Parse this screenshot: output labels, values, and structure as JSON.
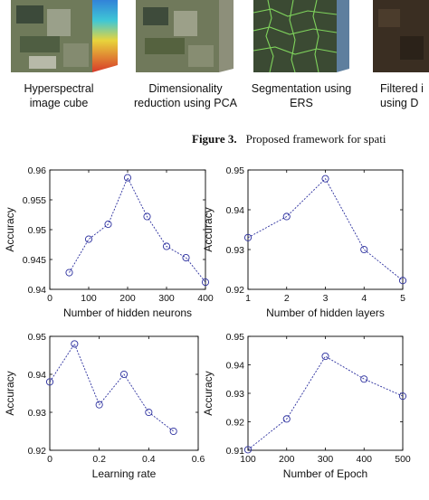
{
  "pipeline": {
    "steps": [
      {
        "label": "Hyperspectral\nimage cube"
      },
      {
        "label": "Dimensionality\nreduction using PCA"
      },
      {
        "label": "Segmentation using\nERS"
      },
      {
        "label": "Filtered i\nusing D"
      }
    ]
  },
  "figure": {
    "number": "Figure 3.",
    "caption": "Proposed framework for spati"
  },
  "chart_data": [
    {
      "type": "line",
      "xlabel": "Number of hidden neurons",
      "ylabel": "Accuracy",
      "xlim": [
        0,
        400
      ],
      "ylim": [
        0.94,
        0.96
      ],
      "xticks": [
        0,
        100,
        200,
        300,
        400
      ],
      "yticks": [
        0.94,
        0.945,
        0.95,
        0.955,
        0.96
      ],
      "x": [
        50,
        100,
        150,
        200,
        250,
        300,
        350,
        400
      ],
      "y": [
        0.9428,
        0.9484,
        0.9509,
        0.9587,
        0.9522,
        0.9472,
        0.9453,
        0.9412
      ]
    },
    {
      "type": "line",
      "xlabel": "Number of hidden layers",
      "ylabel": "Accuracy",
      "xlim": [
        1,
        5
      ],
      "ylim": [
        0.92,
        0.95
      ],
      "xticks": [
        1,
        2,
        3,
        4,
        5
      ],
      "yticks": [
        0.92,
        0.93,
        0.94,
        0.95
      ],
      "x": [
        1,
        2,
        3,
        4,
        5
      ],
      "y": [
        0.933,
        0.9383,
        0.9478,
        0.93,
        0.9222
      ]
    },
    {
      "type": "line",
      "xlabel": "Learning rate",
      "ylabel": "Accuracy",
      "xlim": [
        0,
        0.6
      ],
      "ylim": [
        0.92,
        0.95
      ],
      "xticks": [
        0,
        0.2,
        0.4,
        0.6
      ],
      "yticks": [
        0.92,
        0.93,
        0.94,
        0.95
      ],
      "x": [
        0,
        0.1,
        0.2,
        0.3,
        0.4,
        0.5
      ],
      "y": [
        0.938,
        0.948,
        0.932,
        0.94,
        0.93,
        0.925
      ]
    },
    {
      "type": "line",
      "xlabel": "Number of Epoch",
      "ylabel": "Accuracy",
      "xlim": [
        100,
        500
      ],
      "ylim": [
        0.91,
        0.95
      ],
      "xticks": [
        100,
        200,
        300,
        400,
        500
      ],
      "yticks": [
        0.91,
        0.92,
        0.93,
        0.94,
        0.95
      ],
      "x": [
        100,
        200,
        300,
        400,
        500
      ],
      "y": [
        0.9102,
        0.921,
        0.943,
        0.935,
        0.929
      ]
    }
  ]
}
